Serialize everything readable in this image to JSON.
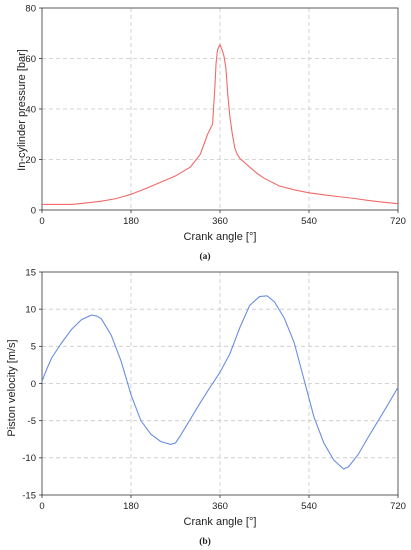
{
  "chart_data": [
    {
      "type": "line",
      "caption": "(a)",
      "xlabel": "Crank angle [°]",
      "ylabel": "In-cylinder pressure [bar]",
      "xlim": [
        0,
        720
      ],
      "ylim": [
        0,
        80
      ],
      "xticks": [
        0,
        180,
        360,
        540,
        720
      ],
      "yticks": [
        0,
        20,
        40,
        60,
        80
      ],
      "grid": true,
      "color": "#f06a6a",
      "series": [
        {
          "x": [
            0,
            60,
            90,
            120,
            150,
            180,
            210,
            240,
            270,
            300,
            320,
            335,
            345,
            350,
            352,
            355,
            360,
            365,
            368,
            372,
            376,
            380,
            385,
            390,
            395,
            400,
            420,
            435,
            450,
            480,
            510,
            540,
            570,
            600,
            630,
            660,
            690,
            720
          ],
          "y": [
            2.2,
            2.2,
            2.8,
            3.5,
            4.5,
            6.2,
            8.5,
            11.0,
            13.5,
            17.0,
            22.0,
            30.0,
            34.0,
            50.0,
            58.0,
            63.5,
            65.5,
            63.0,
            61.0,
            56.0,
            45.0,
            37.0,
            30.0,
            24.5,
            22.0,
            20.5,
            17.0,
            14.5,
            12.5,
            9.5,
            8.0,
            6.8,
            6.0,
            5.3,
            4.6,
            3.8,
            3.1,
            2.5
          ]
        }
      ]
    },
    {
      "type": "line",
      "caption": "(b)",
      "xlabel": "Crank angle [°]",
      "ylabel": "Piston velocity [m/s]",
      "xlim": [
        0,
        720
      ],
      "ylim": [
        -15,
        15
      ],
      "xticks": [
        0,
        180,
        360,
        540,
        720
      ],
      "yticks": [
        -15,
        -10,
        -5,
        0,
        5,
        10,
        15
      ],
      "grid": true,
      "color": "#6a8fe0",
      "series": [
        {
          "x": [
            0,
            10,
            20,
            40,
            60,
            80,
            100,
            110,
            120,
            140,
            160,
            180,
            200,
            220,
            240,
            260,
            270,
            280,
            300,
            320,
            340,
            360,
            380,
            400,
            420,
            440,
            455,
            470,
            490,
            510,
            530,
            550,
            570,
            590,
            610,
            620,
            640,
            660,
            680,
            700,
            720
          ],
          "y": [
            0.3,
            2.0,
            3.5,
            5.5,
            7.3,
            8.6,
            9.2,
            9.1,
            8.7,
            6.5,
            3.0,
            -1.5,
            -5.0,
            -6.8,
            -7.8,
            -8.2,
            -8.0,
            -7.0,
            -4.8,
            -2.6,
            -0.5,
            1.5,
            4.0,
            7.5,
            10.5,
            11.7,
            11.8,
            11.0,
            8.8,
            5.5,
            0.5,
            -4.5,
            -8.0,
            -10.3,
            -11.5,
            -11.2,
            -9.5,
            -7.2,
            -5.0,
            -2.8,
            -0.5
          ]
        }
      ]
    }
  ]
}
